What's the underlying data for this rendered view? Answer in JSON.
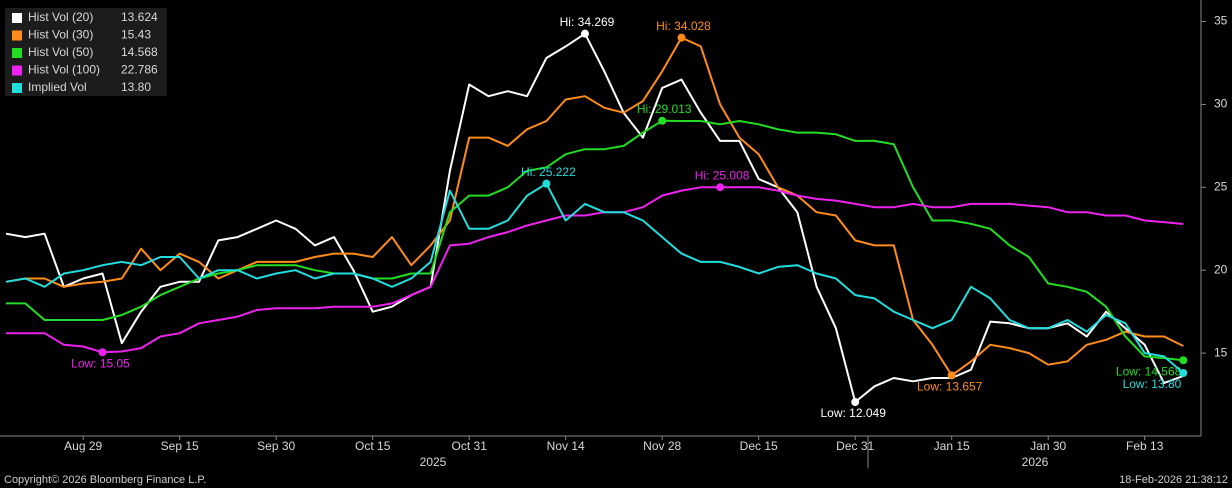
{
  "chart_data": {
    "type": "line",
    "categories": [
      null,
      null,
      null,
      null,
      "Aug 29",
      null,
      null,
      null,
      null,
      "Sep 15",
      null,
      null,
      null,
      null,
      "Sep 30",
      null,
      null,
      null,
      null,
      "Oct 15",
      null,
      null,
      null,
      null,
      "Oct 31",
      null,
      null,
      null,
      null,
      "Nov 14",
      null,
      null,
      null,
      null,
      "Nov 28",
      null,
      null,
      null,
      null,
      "Dec 15",
      null,
      null,
      null,
      null,
      "Dec 31",
      null,
      null,
      null,
      null,
      "Jan 15",
      null,
      null,
      null,
      null,
      "Jan 30",
      null,
      null,
      null,
      null,
      "Feb 13",
      null,
      null
    ],
    "years": [
      "2025",
      "2026"
    ],
    "ylim": [
      10,
      36.3
    ],
    "yticks": [
      15,
      20,
      25,
      30,
      35
    ],
    "series": [
      {
        "name": "Hist Vol (20)",
        "color": "#ffffff",
        "legend_value": "13.624",
        "high_label": "Hi: 34.269",
        "low_label": "Low: 12.049",
        "values": [
          22.2,
          22.0,
          22.2,
          19.0,
          19.5,
          19.8,
          15.6,
          17.5,
          19.0,
          19.3,
          19.3,
          21.8,
          22.0,
          22.5,
          23.0,
          22.5,
          21.5,
          22.0,
          20.0,
          17.5,
          17.8,
          18.5,
          19.0,
          26.0,
          31.2,
          30.5,
          30.8,
          30.5,
          32.8,
          33.5,
          34.269,
          32.0,
          29.5,
          28.0,
          31.0,
          31.5,
          29.5,
          27.8,
          27.8,
          25.5,
          25.0,
          23.5,
          19.0,
          16.5,
          12.049,
          13.0,
          13.5,
          13.3,
          13.5,
          13.5,
          14.0,
          16.9,
          16.8,
          16.5,
          16.5,
          16.8,
          16.0,
          17.5,
          16.5,
          15.5,
          13.2,
          13.624
        ]
      },
      {
        "name": "Hist Vol (30)",
        "color": "#ff8c1a",
        "legend_value": "15.43",
        "high_label": "Hi: 34.028",
        "low_label": "Low: 13.657",
        "values": [
          19.3,
          19.5,
          19.5,
          19.0,
          19.2,
          19.3,
          19.5,
          21.3,
          20.0,
          21.0,
          20.5,
          19.5,
          20.0,
          20.5,
          20.5,
          20.5,
          20.8,
          21.0,
          21.0,
          20.8,
          22.0,
          20.3,
          21.5,
          23.0,
          28.0,
          28.0,
          27.5,
          28.5,
          29.0,
          30.3,
          30.5,
          29.8,
          29.5,
          30.2,
          32.0,
          34.028,
          33.5,
          30.0,
          28.0,
          27.0,
          25.0,
          24.5,
          23.5,
          23.3,
          21.8,
          21.5,
          21.5,
          17.0,
          15.5,
          13.657,
          14.5,
          15.5,
          15.3,
          15.0,
          14.3,
          14.5,
          15.5,
          15.8,
          16.3,
          16.0,
          16.0,
          15.43
        ]
      },
      {
        "name": "Hist Vol (50)",
        "color": "#22dd22",
        "legend_value": "14.568",
        "high_label": "Hi: 29.013",
        "low_label": "Low: 14.568",
        "values": [
          18.0,
          18.0,
          17.0,
          17.0,
          17.0,
          17.0,
          17.3,
          17.8,
          18.5,
          19.0,
          19.5,
          19.8,
          20.0,
          20.3,
          20.3,
          20.3,
          20.0,
          19.8,
          19.8,
          19.5,
          19.5,
          19.8,
          19.8,
          23.5,
          24.5,
          24.5,
          25.0,
          26.0,
          26.2,
          27.0,
          27.3,
          27.3,
          27.5,
          28.3,
          29.013,
          29.0,
          29.0,
          28.8,
          29.0,
          28.8,
          28.5,
          28.3,
          28.3,
          28.2,
          27.8,
          27.8,
          27.6,
          25.0,
          23.0,
          23.0,
          22.8,
          22.5,
          21.5,
          20.8,
          19.2,
          19.0,
          18.7,
          17.8,
          16.0,
          14.8,
          14.7,
          14.568
        ]
      },
      {
        "name": "Hist Vol (100)",
        "color": "#ee22ee",
        "legend_value": "22.786",
        "high_label": "Hi: 25.008",
        "low_label": "Low: 15.05",
        "values": [
          16.2,
          16.2,
          16.2,
          15.5,
          15.4,
          15.05,
          15.1,
          15.3,
          16.0,
          16.2,
          16.8,
          17.0,
          17.2,
          17.6,
          17.7,
          17.7,
          17.7,
          17.8,
          17.8,
          17.8,
          18.0,
          18.5,
          19.0,
          21.5,
          21.6,
          22.0,
          22.3,
          22.7,
          23.0,
          23.3,
          23.3,
          23.5,
          23.5,
          23.8,
          24.5,
          24.8,
          25.0,
          25.008,
          25.0,
          25.0,
          24.8,
          24.5,
          24.3,
          24.2,
          24.0,
          23.8,
          23.8,
          24.0,
          23.8,
          23.8,
          24.0,
          24.0,
          24.0,
          23.9,
          23.8,
          23.5,
          23.5,
          23.3,
          23.3,
          23.0,
          22.9,
          22.786
        ]
      },
      {
        "name": "Implied Vol",
        "color": "#22dddd",
        "legend_value": "13.80",
        "high_label": "Hi: 25.222",
        "low_label": "Low: 13.80",
        "values": [
          19.3,
          19.5,
          19.0,
          19.8,
          20.0,
          20.3,
          20.5,
          20.3,
          20.8,
          20.8,
          19.5,
          20.0,
          20.0,
          19.5,
          19.8,
          20.0,
          19.5,
          19.8,
          19.8,
          19.5,
          19.0,
          19.5,
          20.5,
          24.8,
          22.5,
          22.5,
          23.0,
          24.5,
          25.222,
          23.0,
          24.0,
          23.5,
          23.5,
          23.0,
          22.0,
          21.0,
          20.5,
          20.5,
          20.2,
          19.8,
          20.2,
          20.3,
          19.8,
          19.5,
          18.5,
          18.3,
          17.5,
          17.0,
          16.5,
          17.0,
          19.0,
          18.3,
          17.0,
          16.5,
          16.5,
          17.0,
          16.3,
          17.3,
          16.8,
          15.0,
          14.8,
          13.8
        ]
      }
    ]
  },
  "footer": {
    "copyright": "Copyright© 2026 Bloomberg Finance L.P.",
    "timestamp": "18-Feb-2026 21:38:12"
  }
}
